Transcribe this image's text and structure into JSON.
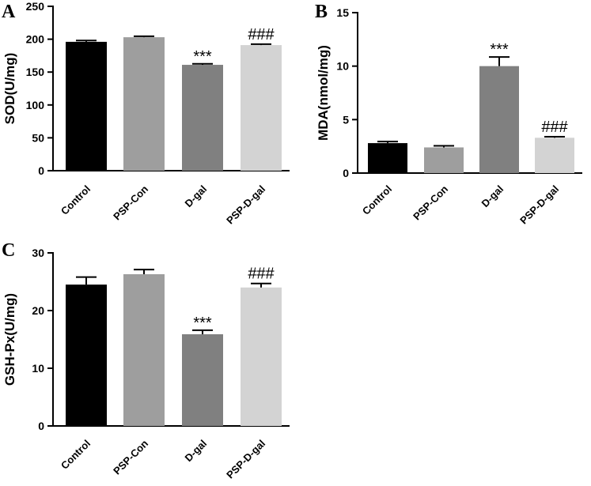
{
  "chart_data": [
    {
      "panel": "A",
      "type": "bar",
      "categories": [
        "Control",
        "PSP-Con",
        "D-gal",
        "PSP-D-gal"
      ],
      "values": [
        196,
        203,
        161,
        191
      ],
      "errors": [
        2,
        1.5,
        1.5,
        1.5
      ],
      "annotations": [
        "",
        "",
        "***",
        "###"
      ],
      "colors": [
        "#000000",
        "#9e9e9e",
        "#808080",
        "#d3d3d3"
      ],
      "ylabel": "SOD(U/mg)",
      "ylim": [
        0,
        250
      ],
      "yticks": [
        0,
        50,
        100,
        150,
        200,
        250
      ]
    },
    {
      "panel": "B",
      "type": "bar",
      "categories": [
        "Control",
        "PSP-Con",
        "D-gal",
        "PSP-D-gal"
      ],
      "values": [
        2.8,
        2.4,
        10.0,
        3.3
      ],
      "errors": [
        0.15,
        0.15,
        0.85,
        0.1
      ],
      "annotations": [
        "",
        "",
        "***",
        "###"
      ],
      "colors": [
        "#000000",
        "#9e9e9e",
        "#808080",
        "#d3d3d3"
      ],
      "ylabel": "MDA(nmol/mg)",
      "ylim": [
        0,
        15
      ],
      "yticks": [
        0,
        5,
        10,
        15
      ]
    },
    {
      "panel": "C",
      "type": "bar",
      "categories": [
        "Control",
        "PSP-Con",
        "D-gal",
        "PSP-D-gal"
      ],
      "values": [
        24.5,
        26.3,
        15.9,
        24.0
      ],
      "errors": [
        1.3,
        0.8,
        0.7,
        0.7
      ],
      "annotations": [
        "",
        "",
        "***",
        "###"
      ],
      "colors": [
        "#000000",
        "#9e9e9e",
        "#808080",
        "#d3d3d3"
      ],
      "ylabel": "GSH-Px(U/mg)",
      "ylim": [
        0,
        30
      ],
      "yticks": [
        0,
        10,
        20,
        30
      ]
    }
  ]
}
